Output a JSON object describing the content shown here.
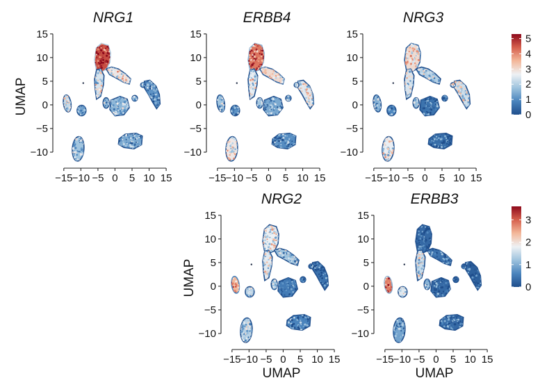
{
  "panel_letter": "",
  "chart_data": [
    {
      "type": "scatter",
      "gene": "NRG1",
      "title": "NRG1",
      "xlabel": "",
      "ylabel": "UMAP",
      "xlim": [
        -17,
        16
      ],
      "ylim": [
        -12.5,
        16
      ],
      "xticks": [
        -15,
        -10,
        -5,
        0,
        5,
        10,
        15
      ],
      "yticks": [
        -10,
        -5,
        0,
        5,
        10,
        15
      ],
      "color_scale": "shared-a",
      "expression": {
        "apex": 4.6,
        "branch": 2.8,
        "trunk": 2.4,
        "left_small": 2.2,
        "lower_left": 1.8,
        "middle": 1.6,
        "right": 1.1,
        "bottom": 1.4
      }
    },
    {
      "type": "scatter",
      "gene": "ERBB4",
      "title": "ERBB4",
      "xlabel": "",
      "ylabel": "",
      "xlim": [
        -17,
        16
      ],
      "ylim": [
        -12.5,
        16
      ],
      "xticks": [
        -15,
        -10,
        -5,
        0,
        5,
        10,
        15
      ],
      "yticks": [
        -10,
        -5,
        0,
        5,
        10,
        15
      ],
      "color_scale": "shared-a",
      "expression": {
        "apex": 4.2,
        "branch": 3.0,
        "trunk": 2.6,
        "left_small": 1.8,
        "lower_left": 2.8,
        "middle": 1.4,
        "right": 2.5,
        "bottom": 1.0
      }
    },
    {
      "type": "scatter",
      "gene": "NRG3",
      "title": "NRG3",
      "xlabel": "",
      "ylabel": "",
      "xlim": [
        -17,
        16
      ],
      "ylim": [
        -12.5,
        16
      ],
      "xticks": [
        -15,
        -10,
        -5,
        0,
        5,
        10,
        15
      ],
      "yticks": [
        -10,
        -5,
        0,
        5,
        10,
        15
      ],
      "color_scale": "shared-a",
      "expression": {
        "apex": 3.0,
        "branch": 2.0,
        "trunk": 2.4,
        "left_small": 1.5,
        "lower_left": 2.6,
        "middle": 0.6,
        "right": 2.3,
        "bottom": 0.5
      }
    },
    {
      "type": "scatter",
      "gene": "NRG2",
      "title": "NRG2",
      "xlabel": "UMAP",
      "ylabel": "UMAP",
      "xlim": [
        -17,
        16
      ],
      "ylim": [
        -12.5,
        16
      ],
      "xticks": [
        -15,
        -10,
        -5,
        0,
        5,
        10,
        15
      ],
      "yticks": [
        -10,
        -5,
        0,
        5,
        10,
        15
      ],
      "color_scale": "shared-b",
      "expression": {
        "apex": 1.8,
        "branch": 1.2,
        "trunk": 1.7,
        "left_small": 2.4,
        "lower_left": 1.4,
        "middle": 0.5,
        "right": 0.4,
        "bottom": 0.6
      }
    },
    {
      "type": "scatter",
      "gene": "ERBB3",
      "title": "ERBB3",
      "xlabel": "UMAP",
      "ylabel": "",
      "xlim": [
        -17,
        16
      ],
      "ylim": [
        -12.5,
        16
      ],
      "xticks": [
        -15,
        -10,
        -5,
        0,
        5,
        10,
        15
      ],
      "yticks": [
        -10,
        -5,
        0,
        5,
        10,
        15
      ],
      "color_scale": "shared-b",
      "expression": {
        "apex": 0.3,
        "branch": 0.4,
        "trunk": 1.5,
        "left_small": 2.8,
        "lower_left": 0.9,
        "middle": 0.3,
        "right": 0.2,
        "bottom": 0.3
      }
    }
  ],
  "colorbars": [
    {
      "id": "shared-a",
      "min": 0,
      "max": 5.3,
      "ticks": [
        0,
        1,
        2,
        3,
        4,
        5
      ],
      "colormap": "RdBu_r"
    },
    {
      "id": "shared-b",
      "min": 0,
      "max": 3.6,
      "ticks": [
        0,
        1,
        2,
        3
      ],
      "colormap": "RdBu_r"
    }
  ],
  "colormap_stops": [
    "#1f4e8c",
    "#4a84bd",
    "#9ec3de",
    "#eef1f4",
    "#f3b89a",
    "#d6604d",
    "#8e0a1c"
  ]
}
